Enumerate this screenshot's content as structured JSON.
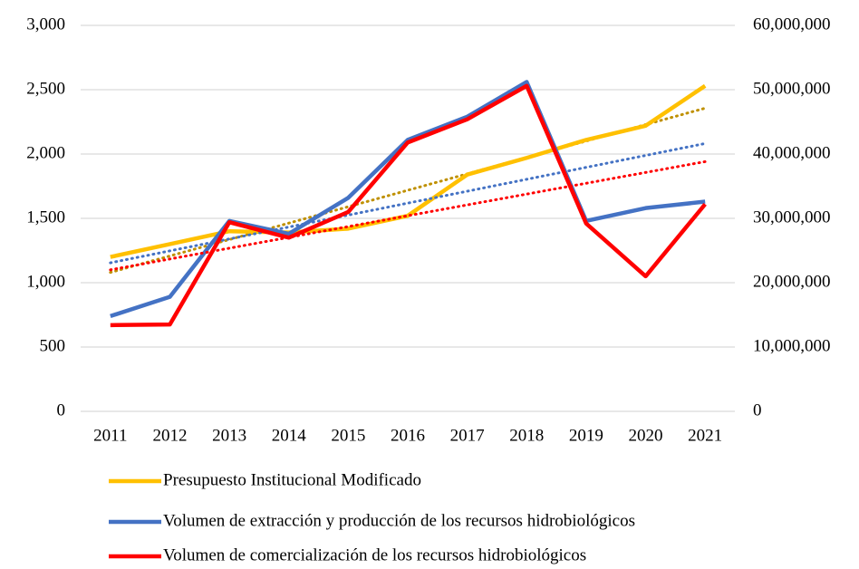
{
  "chart_data": {
    "type": "line",
    "categories": [
      "2011",
      "2012",
      "2013",
      "2014",
      "2015",
      "2016",
      "2017",
      "2018",
      "2019",
      "2020",
      "2021"
    ],
    "series": [
      {
        "name": "Presupuesto Institucional Modificado",
        "color": "#ffc000",
        "trend_color": "#bf9000",
        "axis": "y",
        "values": [
          1200,
          1300,
          1400,
          1390,
          1420,
          1520,
          1840,
          1970,
          2110,
          2220,
          2530
        ]
      },
      {
        "name": "Volumen de extracción y producción de los recursos hidrobiológicos",
        "color": "#4472c4",
        "trend_color": "#4472c4",
        "axis": "y2",
        "values": [
          14800000,
          17800000,
          29600000,
          27600000,
          33200000,
          42200000,
          45800000,
          51200000,
          29600000,
          31600000,
          32600000
        ]
      },
      {
        "name": "Volumen de comercialización de los recursos hidrobiológicos",
        "color": "#ff0000",
        "trend_color": "#ff0000",
        "axis": "y2",
        "values": [
          13400000,
          13500000,
          29400000,
          27000000,
          31000000,
          41800000,
          45400000,
          50600000,
          29200000,
          21000000,
          32200000
        ]
      }
    ],
    "trendline": true,
    "ylim": [
      0,
      3000
    ],
    "yticks": [
      0,
      {
        "value": 500,
        "label": "500"
      },
      {
        "value": 1000,
        "label": "1,000"
      },
      {
        "value": 1500,
        "label": "1,500"
      },
      {
        "value": 2000,
        "label": "2,000"
      },
      {
        "value": 2500,
        "label": "2,500"
      },
      {
        "value": 3000,
        "label": "3,000"
      }
    ],
    "y2lim": [
      0,
      60000000
    ],
    "y2ticks": [
      0,
      {
        "value": 10000000,
        "label": "10,000,000"
      },
      {
        "value": 20000000,
        "label": "20,000,000"
      },
      {
        "value": 30000000,
        "label": "30,000,000"
      },
      {
        "value": 40000000,
        "label": "40,000,000"
      },
      {
        "value": 50000000,
        "label": "50,000,000"
      },
      {
        "value": 60000000,
        "label": "60,000,000"
      }
    ],
    "grid": true,
    "legend": "bottom"
  }
}
